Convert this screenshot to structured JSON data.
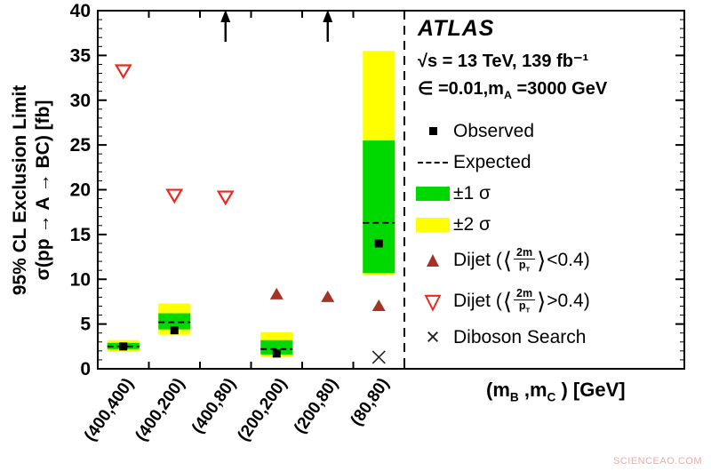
{
  "watermark": "SCIENCEAO.COM",
  "y_axis": {
    "title_line1": "95% CL Exclusion Limit",
    "title_line2": "σ(pp → A → BC) [fb]",
    "ticks": [
      0,
      5,
      10,
      15,
      20,
      25,
      30,
      35,
      40
    ]
  },
  "x_axis": {
    "label_parts": {
      "pre": "(m",
      "sub_b": "B",
      "mid": " ,m",
      "sub_c": "C",
      "post": " ) [GeV]"
    }
  },
  "legend": {
    "atlas": "ATLAS",
    "lumi": "√s = 13 TeV, 139 fb⁻¹",
    "params": {
      "pre": "∈ =0.01,m",
      "sub": "A",
      "post": " =3000 GeV"
    },
    "observed": "Observed",
    "expected": "Expected",
    "band1": "±1 σ",
    "band2": "±2 σ",
    "dijet_low": {
      "pre": "Dijet (",
      "langle": "⟨",
      "num": "2m",
      "den": "p",
      "den_sub": "T",
      "rangle": "⟩",
      "cmp": "<0.4)"
    },
    "dijet_high": {
      "pre": "Dijet (",
      "langle": "⟨",
      "num": "2m",
      "den": "p",
      "den_sub": "T",
      "rangle": "⟩",
      "cmp": ">0.4)"
    },
    "diboson": "Diboson Search"
  },
  "icons": {
    "filled_triangle_up": "▲",
    "open_triangle_down": "▽",
    "cross": "×"
  },
  "chart_data": {
    "type": "scatter",
    "title": "ATLAS 95% CL exclusion limits",
    "xlabel": "(mB ,mC ) [GeV]",
    "ylabel": "95% CL Exclusion Limit σ(pp → A → BC) [fb]",
    "ylim": [
      0,
      40
    ],
    "ytick_step": 5,
    "grid": false,
    "legend_position": "right-inside",
    "categories": [
      "(400,400)",
      "(400,200)",
      "(400,80)",
      "(200,200)",
      "(200,80)",
      "(80,80)"
    ],
    "series": {
      "observed": [
        2.5,
        4.3,
        null,
        1.7,
        null,
        14.0
      ],
      "expected": [
        2.5,
        5.2,
        null,
        2.2,
        null,
        16.3
      ],
      "band_1sigma": [
        [
          2.2,
          2.9
        ],
        [
          4.4,
          6.2
        ],
        null,
        [
          1.6,
          3.2
        ],
        null,
        [
          10.7,
          25.5
        ]
      ],
      "band_2sigma": [
        [
          1.9,
          3.2
        ],
        [
          3.8,
          7.3
        ],
        null,
        [
          1.3,
          4.1
        ],
        null,
        [
          10.5,
          35.5
        ]
      ],
      "offscale_arrow": [
        false,
        false,
        true,
        false,
        true,
        false
      ],
      "dijet_low_pt": [
        null,
        null,
        null,
        8.3,
        8.0,
        7.0
      ],
      "dijet_high_pt": [
        33.3,
        19.4,
        19.2,
        null,
        null,
        null
      ],
      "diboson": [
        null,
        null,
        null,
        null,
        null,
        1.3
      ]
    },
    "colors": {
      "yellow_band": "#ffff00",
      "green_band": "#00d900",
      "observed": "#000000",
      "expected": "#000000",
      "dijet_filled": "#a43327",
      "dijet_open": "#e8291f",
      "cross": "#222222"
    }
  }
}
